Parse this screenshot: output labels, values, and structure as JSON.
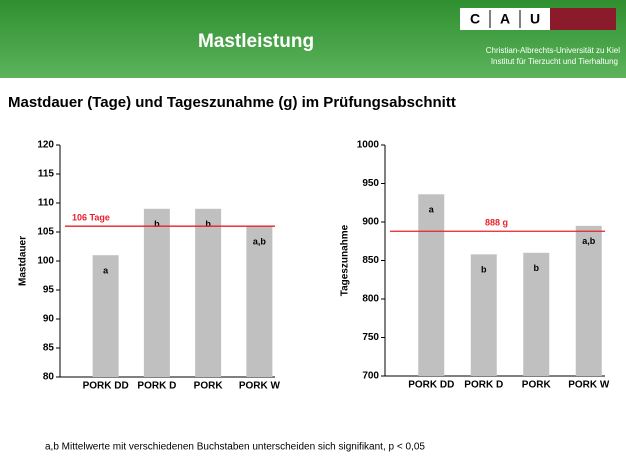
{
  "header": {
    "title": "Mastleistung",
    "logo": [
      "C",
      "A",
      "U"
    ],
    "university": "Christian-Albrechts-Universität zu Kiel",
    "institute": "Institut für Tierzucht und Tierhaltung"
  },
  "subtitle": "Mastdauer (Tage) und Tageszunahme (g) im Prüfungsabschnitt",
  "footnote": "a,b Mittelwerte mit verschiedenen Buchstaben unterscheiden sich signifikant, p < 0,05",
  "chart_data": [
    {
      "type": "bar",
      "y_label": "Mastdauer",
      "categories": [
        "PORK DD",
        "PORK D",
        "PORK",
        "PORK W"
      ],
      "values": [
        101,
        109,
        109,
        106
      ],
      "annotations": [
        "a",
        "b",
        "b",
        "a,b"
      ],
      "color": "#c0c0c0",
      "ylim": [
        80,
        120
      ],
      "yticks": [
        80,
        85,
        90,
        95,
        100,
        105,
        110,
        115,
        120
      ],
      "reference": {
        "value": 106,
        "label": "106 Tage",
        "color": "#e8202a"
      }
    },
    {
      "type": "bar",
      "y_label": "Tageszunahme",
      "categories": [
        "PORK DD",
        "PORK D",
        "PORK",
        "PORK W"
      ],
      "values": [
        936,
        858,
        860,
        895
      ],
      "annotations": [
        "a",
        "b",
        "b",
        "a,b"
      ],
      "color": "#c0c0c0",
      "ylim": [
        700,
        1000
      ],
      "yticks": [
        700,
        750,
        800,
        850,
        900,
        950,
        1000
      ],
      "reference": {
        "value": 888,
        "label": "888 g",
        "color": "#e8202a"
      }
    }
  ]
}
